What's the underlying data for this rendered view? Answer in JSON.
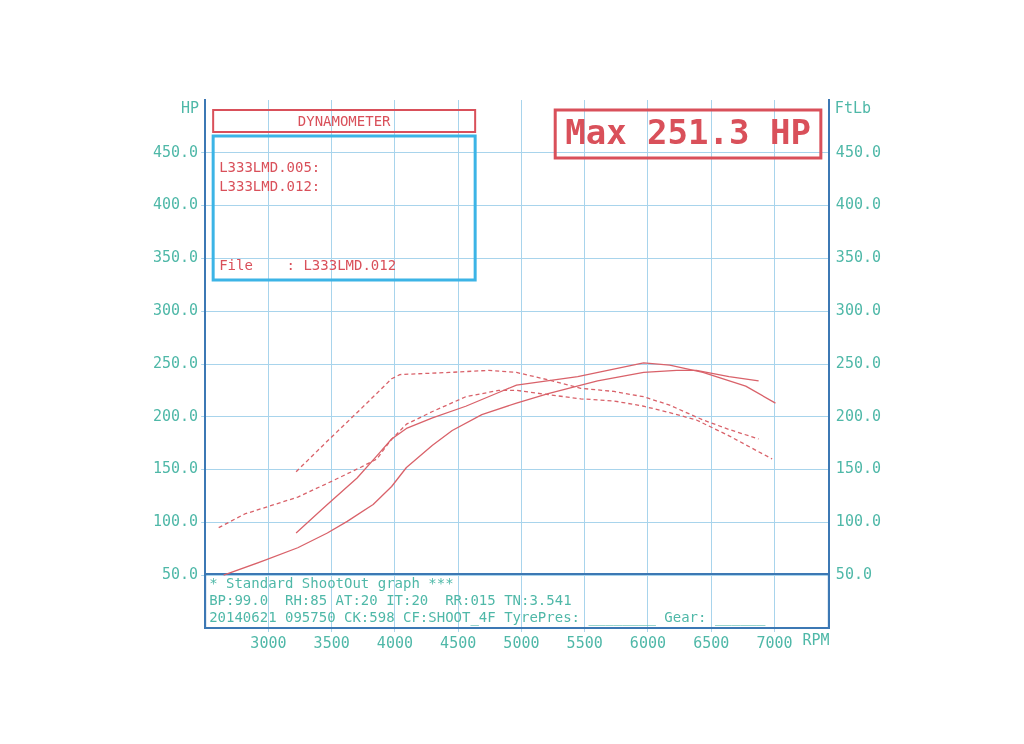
{
  "chart_data": {
    "type": "line",
    "title": "DYNAMOMETER",
    "xlabel": "RPM",
    "ylabel": "HP",
    "y2label": "FtLb",
    "xlim": [
      2500,
      7430
    ],
    "xticks": [
      3000,
      3500,
      4000,
      4500,
      5000,
      5500,
      6000,
      6500,
      7000
    ],
    "ylim": [
      0,
      500
    ],
    "yticks": [
      {
        "value": 50,
        "label": "50.0"
      },
      {
        "value": 100,
        "label": "100.0"
      },
      {
        "value": 150,
        "label": "150.0"
      },
      {
        "value": 200,
        "label": "200.0"
      },
      {
        "value": 250,
        "label": "250.0"
      },
      {
        "value": 300,
        "label": "300.0"
      },
      {
        "value": 350,
        "label": "350.0"
      },
      {
        "value": 400,
        "label": "400.0"
      },
      {
        "value": 450,
        "label": "450.0"
      }
    ],
    "y2lim": [
      0,
      500
    ],
    "y2ticks": [
      {
        "value": 50,
        "label": "50.0"
      },
      {
        "value": 100,
        "label": "100.0"
      },
      {
        "value": 150,
        "label": "150.0"
      },
      {
        "value": 200,
        "label": "200.0"
      },
      {
        "value": 250,
        "label": "250.0"
      },
      {
        "value": 300,
        "label": "300.0"
      },
      {
        "value": 350,
        "label": "350.0"
      },
      {
        "value": 400,
        "label": "400.0"
      },
      {
        "value": 450,
        "label": "450.0"
      }
    ],
    "grid": true,
    "marker": "none",
    "legend": false,
    "annotations": [
      "Max 251.3 HP",
      "L333LMD.005:",
      "L333LMD.012:",
      "File    : L333LMD.012",
      "* Standard ShootOut graph ***",
      "BP:99.0  RH:85 AT:20 IT:20  RR:015 TN:3.541",
      "20140621 095750 CK:598 CF:SHOOT_4F TyrePres: ________ Gear: ______"
    ],
    "series": [
      {
        "color": "#d9626a",
        "line_style": "solid",
        "x": [
          2646,
          2969,
          3232,
          3466,
          3623,
          3828,
          3974,
          4091,
          4297,
          4453,
          4687,
          4961,
          5211,
          5602,
          5966,
          6227,
          6383,
          6641,
          6875
        ],
        "values": [
          50,
          64,
          76,
          90,
          101,
          117,
          134,
          152,
          173,
          187,
          202,
          213,
          222,
          234,
          242,
          244,
          244,
          238,
          234
        ]
      },
      {
        "color": "#d9626a",
        "line_style": "solid",
        "x": [
          3219,
          3466,
          3701,
          3857,
          3974,
          4091,
          4297,
          4560,
          4820,
          4961,
          5445,
          5966,
          6172,
          6435,
          6773,
          7008
        ],
        "values": [
          90,
          117,
          142,
          163,
          179,
          189,
          199,
          210,
          223,
          230,
          238,
          251,
          249,
          242,
          229,
          213
        ]
      },
      {
        "color": "#d9626a",
        "line_style": "dashed",
        "axis": "y2",
        "x": [
          2607,
          2813,
          3232,
          3466,
          3727,
          3857,
          3961,
          4091,
          4297,
          4560,
          4820,
          4961,
          5211,
          5469,
          5732,
          5966,
          6172,
          6383,
          6641,
          6982
        ],
        "values": [
          95,
          108,
          124,
          137,
          152,
          160,
          177,
          193,
          205,
          219,
          225,
          225,
          221,
          217,
          215,
          210,
          204,
          197,
          182,
          160
        ]
      },
      {
        "color": "#d9626a",
        "line_style": "dashed",
        "axis": "y2",
        "x": [
          3219,
          3466,
          3727,
          3974,
          4039,
          4430,
          4742,
          4961,
          5211,
          5469,
          5732,
          5966,
          6172,
          6435,
          6641,
          6875
        ],
        "values": [
          148,
          177,
          207,
          236,
          240,
          242,
          244,
          242,
          235,
          227,
          224,
          219,
          211,
          197,
          188,
          179
        ]
      }
    ]
  }
}
